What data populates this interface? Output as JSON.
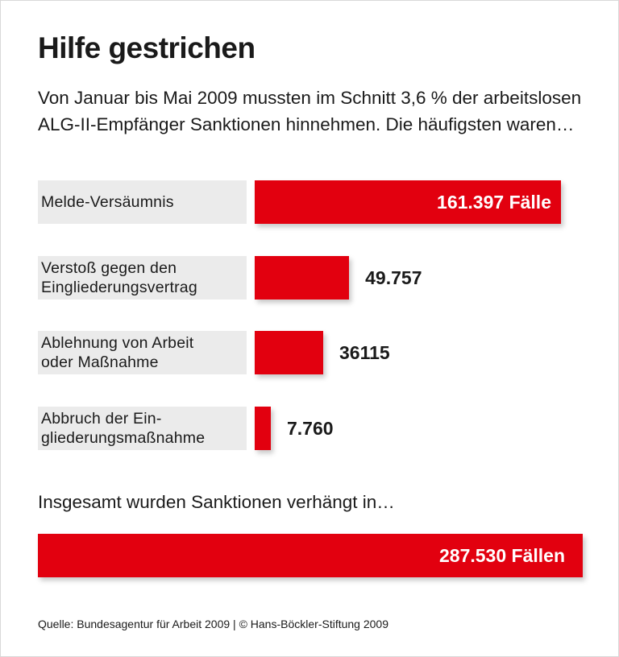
{
  "chart_data": {
    "type": "bar",
    "orientation": "horizontal",
    "title": "Hilfe gestrichen",
    "subtitle": "Von Januar bis Mai 2009 mussten im Schnitt 3,6 % der arbeitslosen ALG-II-Empfänger Sanktionen hinnehmen. Die häufigsten waren…",
    "categories": [
      "Melde-Versäumnis",
      "Verstoß gegen den Eingliederungsvertrag",
      "Ablehnung von Arbeit oder Maßnahme",
      "Abbruch der Eingliederungsmaßnahme"
    ],
    "category_lines": [
      [
        "Melde-Versäumnis"
      ],
      [
        "Verstoß gegen den",
        "Eingliederungsvertrag"
      ],
      [
        "Ablehnung von Arbeit",
        "oder Maßnahme"
      ],
      [
        "Abbruch der Ein-",
        "gliederungsmaßnahme"
      ]
    ],
    "values": [
      161397,
      49757,
      36115,
      7760
    ],
    "data_labels": [
      "161.397 Fälle",
      "49.757",
      "36115",
      "7.760"
    ],
    "total_text": "Insgesamt wurden Sanktionen verhängt in…",
    "total_value": 287530,
    "total_label": "287.530 Fällen",
    "source": "Quelle: Bundesagentur für Arbeit 2009 | © Hans-Böckler-Stiftung 2009",
    "bar_color": "#e2000f",
    "label_bg_color": "#ebebeb",
    "grid": false
  }
}
